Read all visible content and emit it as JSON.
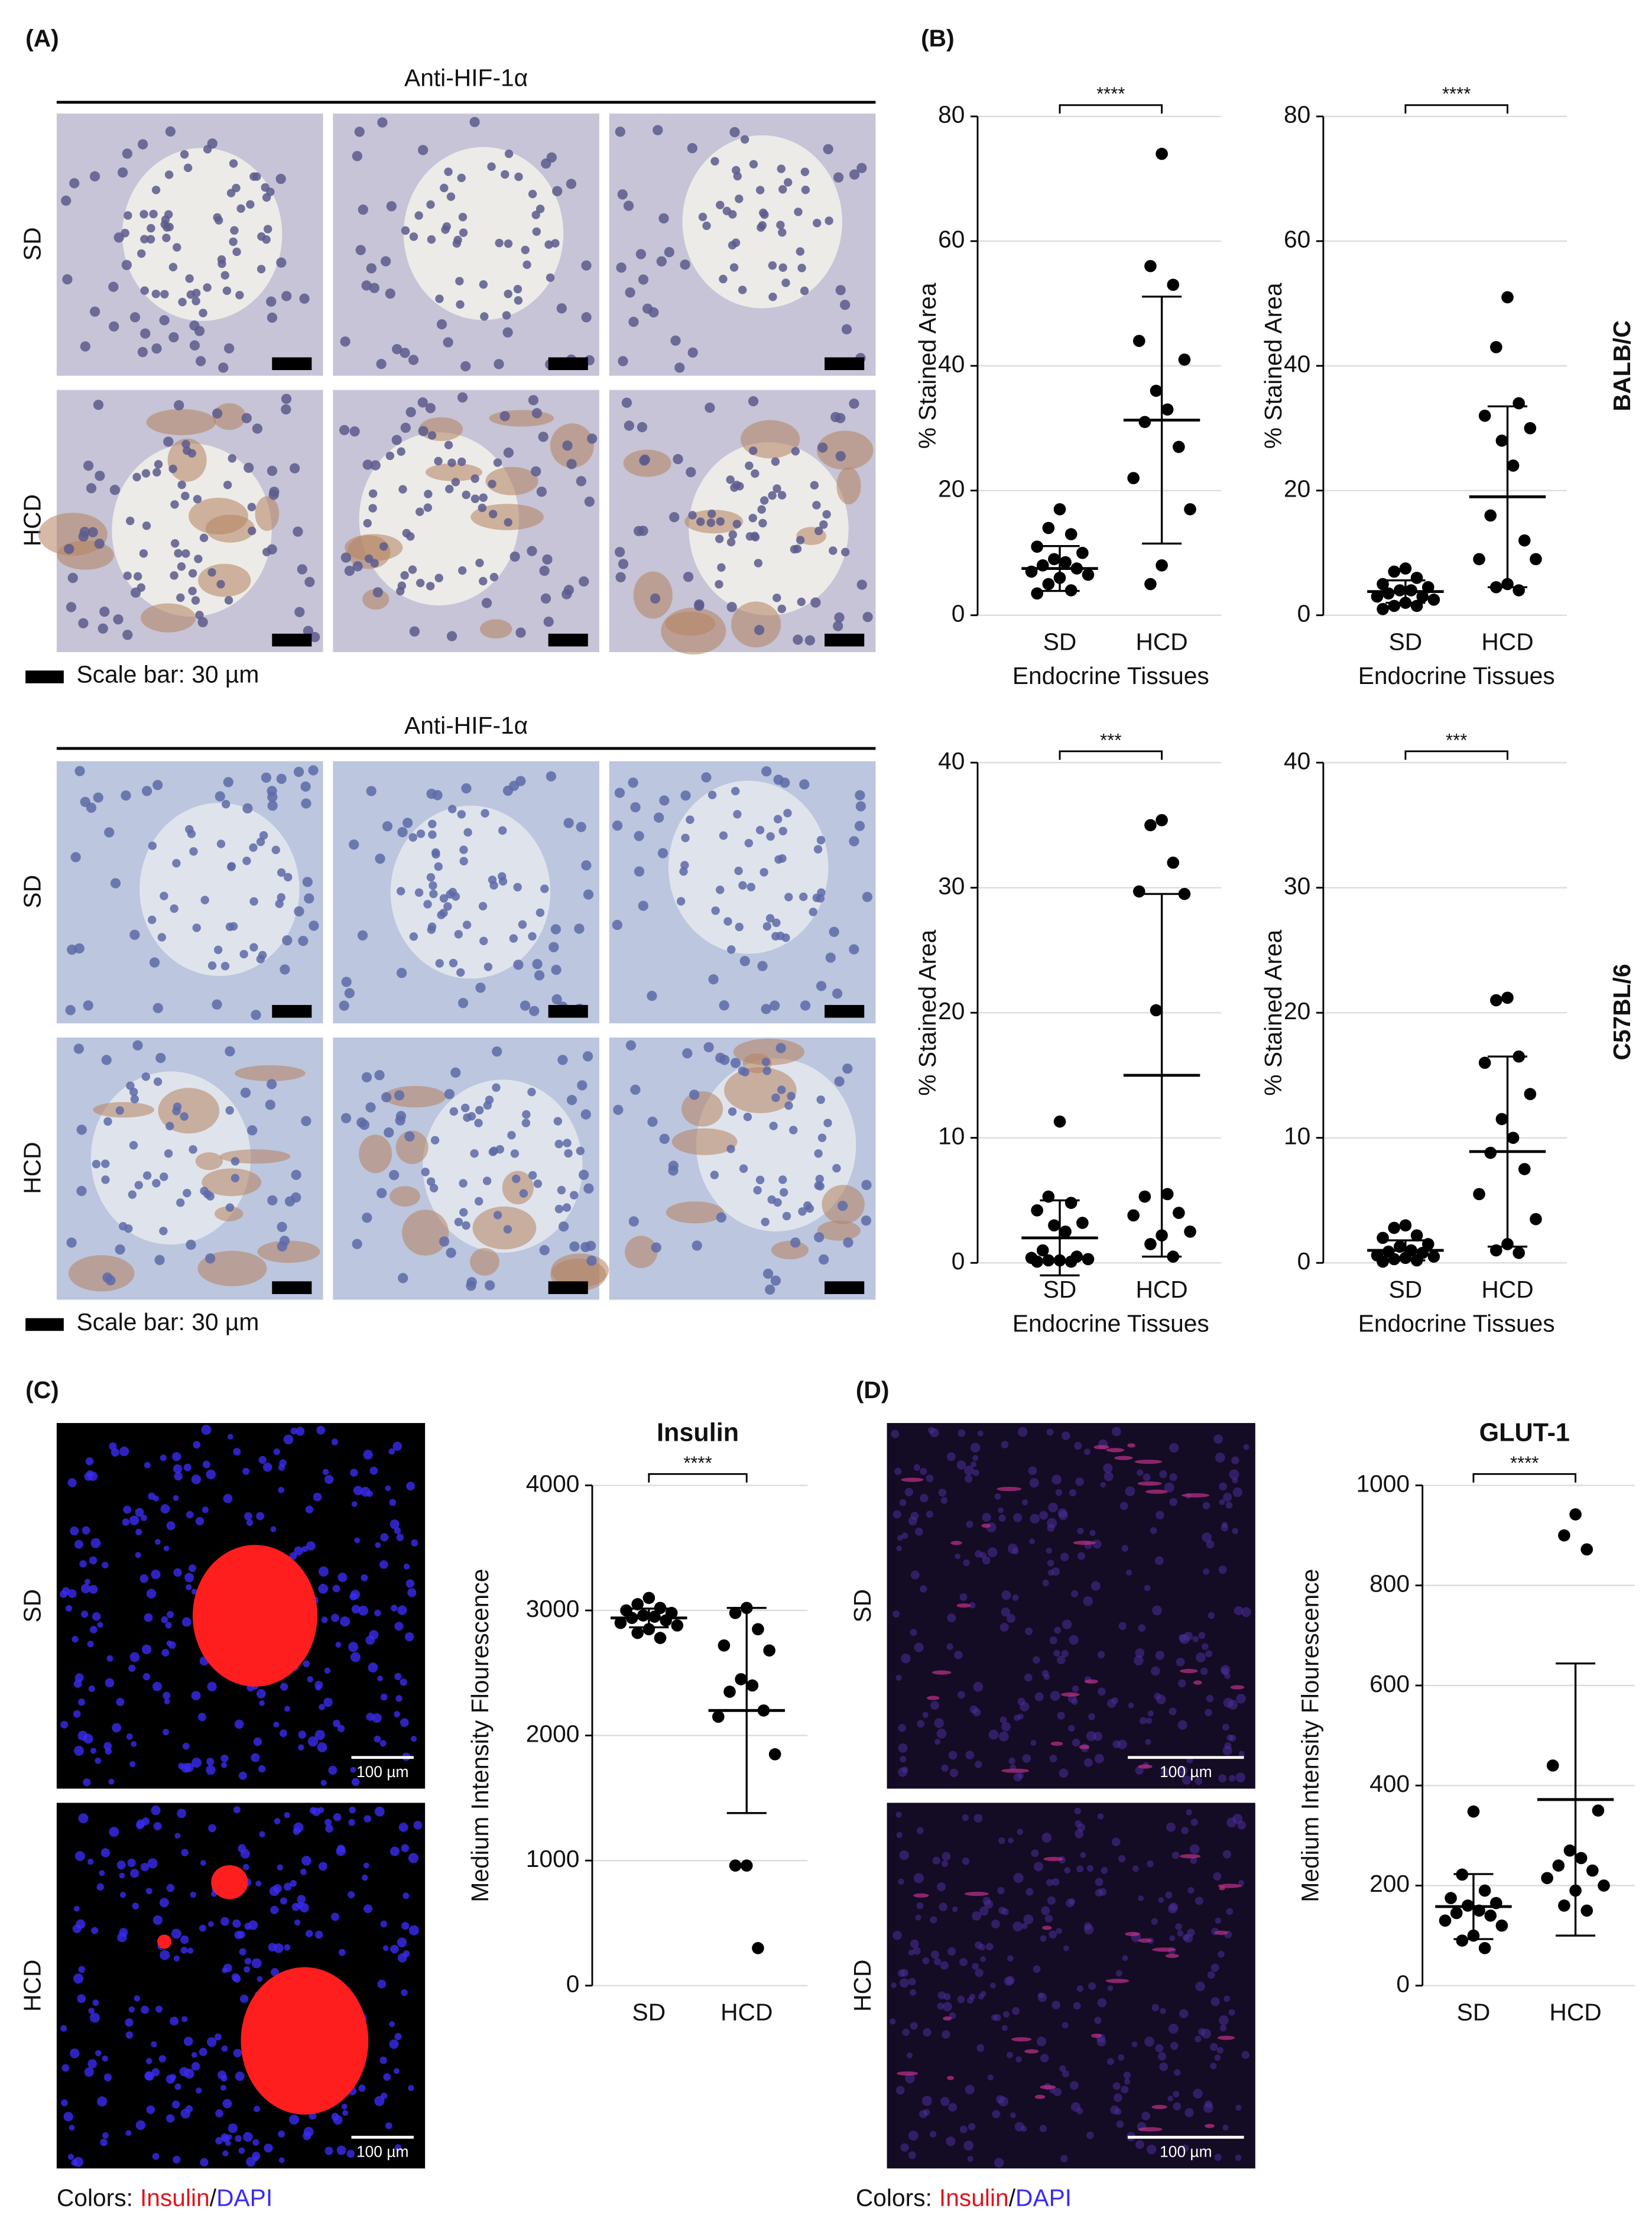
{
  "panels": {
    "A": {
      "label": "(A)",
      "stain": "Anti-HIF-1α",
      "rows": [
        "SD",
        "HCD"
      ],
      "scale_bar": "Scale bar: 30 µm"
    },
    "B": {
      "label": "(B)",
      "strains": [
        "BALB/C",
        "C57BL/6"
      ]
    },
    "C": {
      "label": "(C)",
      "rows": [
        "SD",
        "HCD"
      ],
      "scale_bar": "100 µm",
      "colors": {
        "prefix": "Colors:",
        "insulin": "Insulin",
        "sep": "/",
        "dapi": "DAPI"
      }
    },
    "D": {
      "label": "(D)",
      "rows": [
        "SD",
        "HCD"
      ],
      "scale_bar": "100 µm",
      "colors": {
        "prefix": "Colors:",
        "insulin": "Insulin",
        "sep": "/",
        "dapi": "DAPI"
      }
    }
  },
  "chart_data": [
    {
      "type": "dot",
      "ylabel": "% Stained Area",
      "xlabel": "Endocrine Tissues",
      "significance": "****",
      "ylim": [
        0,
        80
      ],
      "yticks": [
        0,
        20,
        40,
        60,
        80
      ],
      "grid": true,
      "color": "#000000",
      "series": [
        {
          "name": "SD",
          "values": [
            17,
            14,
            13,
            11,
            10,
            9,
            8.5,
            8,
            7.5,
            7,
            6.5,
            6,
            5,
            4,
            3.5
          ],
          "mean": 7.5,
          "sd": 3.6
        },
        {
          "name": "HCD",
          "values": [
            74,
            56,
            53,
            44,
            41,
            36,
            33,
            31,
            27,
            22,
            17,
            8,
            5
          ],
          "mean": 31.3,
          "sd": 19.8
        }
      ]
    },
    {
      "type": "dot",
      "ylabel": "% Stained Area",
      "xlabel": "Endocrine Tissues",
      "significance": "****",
      "ylim": [
        0,
        80
      ],
      "yticks": [
        0,
        20,
        40,
        60,
        80
      ],
      "grid": true,
      "color": "#000000",
      "series": [
        {
          "name": "SD",
          "values": [
            7.5,
            7,
            6,
            5,
            4.5,
            4,
            4,
            3.5,
            3,
            3,
            2.5,
            2,
            1.5,
            1.5,
            1
          ],
          "mean": 3.8,
          "sd": 1.8
        },
        {
          "name": "HCD",
          "values": [
            51,
            43,
            34,
            32,
            30,
            28,
            24,
            16,
            12,
            9,
            9,
            5,
            4.5,
            4
          ],
          "mean": 19,
          "sd": 14.5
        }
      ]
    },
    {
      "type": "dot",
      "ylabel": "% Stained Area",
      "xlabel": "Endocrine Tissues",
      "significance": "***",
      "ylim": [
        0,
        40
      ],
      "yticks": [
        0,
        10,
        20,
        30,
        40
      ],
      "grid": true,
      "color": "#000000",
      "series": [
        {
          "name": "SD",
          "values": [
            11.3,
            5.3,
            4.8,
            4.2,
            3.2,
            3,
            2.5,
            1,
            0.5,
            0.4,
            0.3,
            0.2,
            0.2,
            0.1,
            0.1
          ],
          "mean": 2,
          "sd": 3
        },
        {
          "name": "HCD",
          "values": [
            35.4,
            35,
            32,
            29.7,
            29.5,
            20.2,
            5.5,
            5.3,
            4,
            3.8,
            2.5,
            2.2,
            1.5,
            0.5
          ],
          "mean": 15,
          "sd": 14.5
        }
      ]
    },
    {
      "type": "dot",
      "ylabel": "% Stained Area",
      "xlabel": "Endocrine Tissues",
      "significance": "***",
      "ylim": [
        0,
        40
      ],
      "yticks": [
        0,
        10,
        20,
        30,
        40
      ],
      "grid": true,
      "color": "#000000",
      "series": [
        {
          "name": "SD",
          "values": [
            3,
            2.8,
            2.2,
            2,
            1.5,
            1.3,
            1,
            0.9,
            0.8,
            0.6,
            0.5,
            0.4,
            0.3,
            0.2,
            0.1
          ],
          "mean": 1,
          "sd": 0.8
        },
        {
          "name": "HCD",
          "values": [
            21.2,
            21,
            16.5,
            16,
            13.5,
            11.5,
            10,
            8.8,
            7.5,
            5.5,
            3.5,
            1.5,
            1,
            0.8
          ],
          "mean": 8.9,
          "sd": 7.6
        }
      ]
    },
    {
      "type": "dot",
      "title": "Insulin",
      "ylabel": "Medium Intensity Flourescence",
      "significance": "****",
      "ylim": [
        0,
        4000
      ],
      "yticks": [
        0,
        1000,
        2000,
        3000,
        4000
      ],
      "grid": true,
      "color": "#000000",
      "series": [
        {
          "name": "SD",
          "values": [
            3100,
            3050,
            3020,
            3000,
            2980,
            2960,
            2950,
            2940,
            2920,
            2900,
            2880,
            2850,
            2820,
            2780
          ],
          "mean": 2940,
          "sd": 75
        },
        {
          "name": "HCD",
          "values": [
            3020,
            2980,
            2850,
            2720,
            2680,
            2450,
            2400,
            2350,
            2200,
            2150,
            1850,
            960,
            960,
            300
          ],
          "mean": 2200,
          "sd": 820
        }
      ]
    },
    {
      "type": "dot",
      "title": "GLUT-1",
      "ylabel": "Medium Intensity Flourescence",
      "significance": "****",
      "ylim": [
        0,
        1000
      ],
      "yticks": [
        0,
        200,
        400,
        600,
        800,
        1000
      ],
      "grid": true,
      "color": "#000000",
      "series": [
        {
          "name": "SD",
          "values": [
            348,
            222,
            190,
            175,
            165,
            160,
            150,
            145,
            140,
            130,
            120,
            100,
            90,
            75
          ],
          "mean": 158,
          "sd": 65
        },
        {
          "name": "HCD",
          "values": [
            942,
            900,
            872,
            440,
            350,
            270,
            255,
            240,
            230,
            215,
            200,
            190,
            160,
            150
          ],
          "mean": 372,
          "sd": 272
        }
      ]
    }
  ]
}
